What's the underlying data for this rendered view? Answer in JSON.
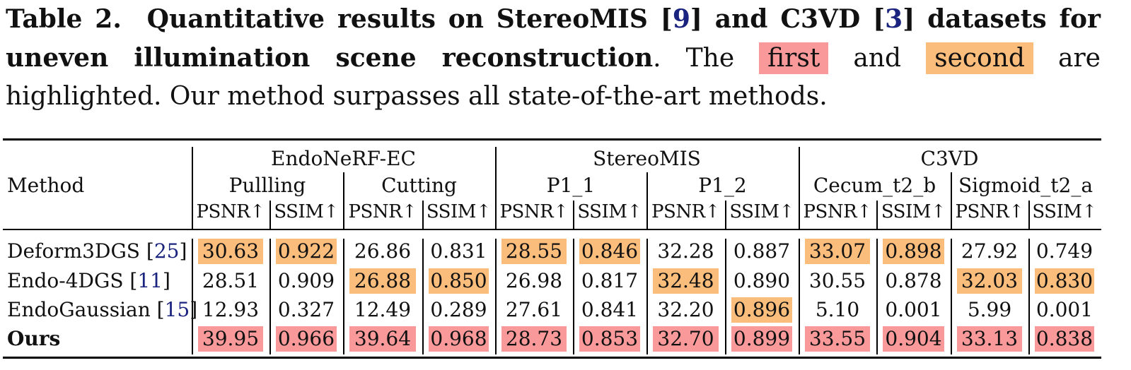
{
  "caption": {
    "label": "Table 2.",
    "bold_text_1": "Quantitative results on StereoMIS [",
    "ref_9": "9",
    "bold_text_2": "] and C3VD [",
    "ref_3": "3",
    "bold_text_3": "] datasets for uneven illumination scene reconstruction",
    "text_1": ". The",
    "first_label": "first",
    "text_2": "and",
    "second_label": "second",
    "text_3": "are highlighted. Our method surpasses all state-of-the-art methods."
  },
  "table": {
    "method_header": "Method",
    "datasets": [
      "EndoNeRF-EC",
      "StereoMIS",
      "C3VD"
    ],
    "scenes": [
      "Pullling",
      "Cutting",
      "P1_1",
      "P1_2",
      "Cecum_t2_b",
      "Sigmoid_t2_a"
    ],
    "metrics": [
      "PSNR↑",
      "SSIM↑",
      "PSNR↑",
      "SSIM↑",
      "PSNR↑",
      "SSIM↑",
      "PSNR↑",
      "SSIM↑",
      "PSNR↑",
      "SSIM↑",
      "PSNR↑",
      "SSIM↑"
    ],
    "rows": [
      {
        "method": "Deform3DGS [",
        "ref": "25",
        "end": "]",
        "values": [
          "30.63",
          "0.922",
          "26.86",
          "0.831",
          "28.55",
          "0.846",
          "32.28",
          "0.887",
          "33.07",
          "0.898",
          "27.92",
          "0.749"
        ],
        "rank": [
          "second",
          "second",
          "",
          "",
          "second",
          "second",
          "",
          "",
          "second",
          "second",
          "",
          ""
        ]
      },
      {
        "method": "Endo-4DGS [",
        "ref": "11",
        "end": "]",
        "values": [
          "28.51",
          "0.909",
          "26.88",
          "0.850",
          "26.98",
          "0.817",
          "32.48",
          "0.890",
          "30.55",
          "0.878",
          "32.03",
          "0.830"
        ],
        "rank": [
          "",
          "",
          "second",
          "second",
          "",
          "",
          "second",
          "",
          "",
          "",
          "second",
          "second"
        ]
      },
      {
        "method": "EndoGaussian [",
        "ref": "15",
        "end": "]",
        "values": [
          "12.93",
          "0.327",
          "12.49",
          "0.289",
          "27.61",
          "0.841",
          "32.20",
          "0.896",
          "5.10",
          "0.001",
          "5.99",
          "0.001"
        ],
        "rank": [
          "",
          "",
          "",
          "",
          "",
          "",
          "",
          "second",
          "",
          "",
          "",
          ""
        ]
      },
      {
        "method": "Ours",
        "ref": "",
        "end": "",
        "bold": true,
        "values": [
          "39.95",
          "0.966",
          "39.64",
          "0.968",
          "28.73",
          "0.853",
          "32.70",
          "0.899",
          "33.55",
          "0.904",
          "33.13",
          "0.838"
        ],
        "rank": [
          "first",
          "first",
          "first",
          "first",
          "first",
          "first",
          "first",
          "first",
          "first",
          "first",
          "first",
          "first"
        ]
      }
    ]
  },
  "colors": {
    "first": "#f9999a",
    "second": "#fbbd7c",
    "ref_link": "#1a237e"
  }
}
